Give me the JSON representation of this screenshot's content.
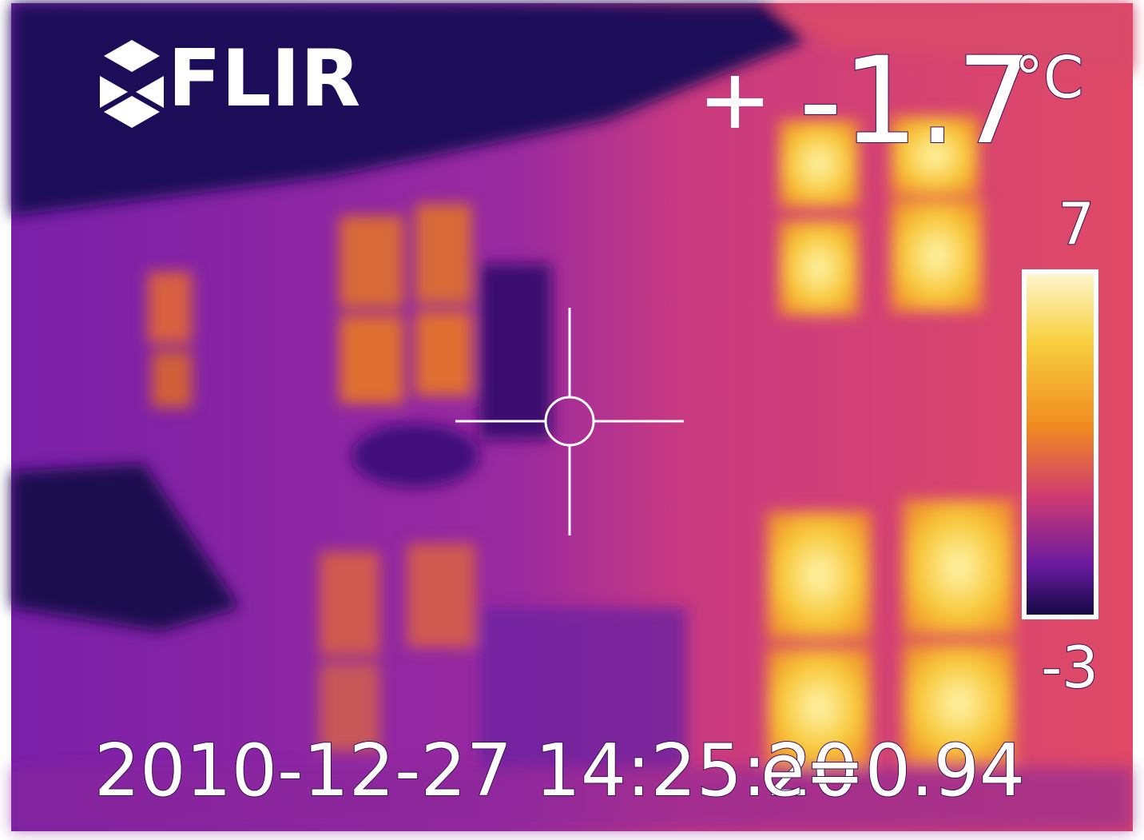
{
  "overlay": {
    "brand": "FLIR",
    "spot_temperature": "-1.7",
    "unit": "°C",
    "scale_max": "7",
    "scale_min": "-3",
    "timestamp": "2010-12-27 14:25:20",
    "emissivity": "e=0.94"
  }
}
